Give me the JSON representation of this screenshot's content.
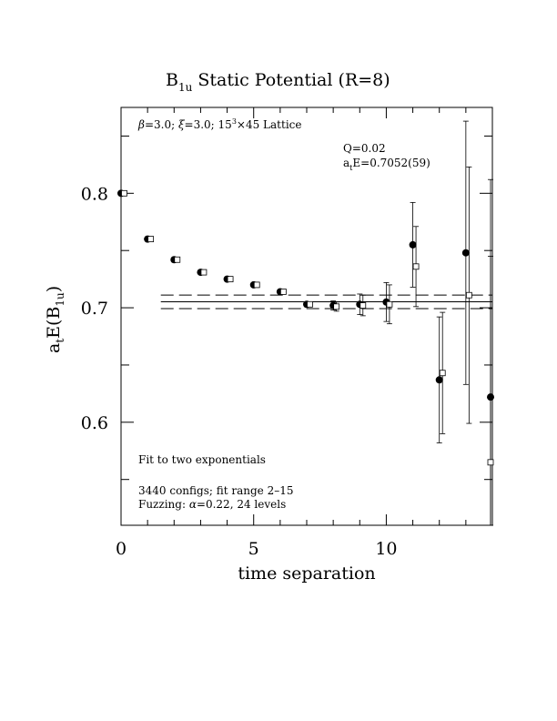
{
  "chart_data": {
    "type": "scatter",
    "title_main": "B",
    "title_sub": "1u",
    "title_rest": " Static Potential (R=8)",
    "xlabel": "time separation",
    "ylabel_parts": [
      "a",
      "t",
      "E(B",
      "1u",
      ")"
    ],
    "xlim": [
      0,
      14
    ],
    "ylim": [
      0.51,
      0.875
    ],
    "xticks": [
      0,
      5,
      10
    ],
    "yticks": [
      0.6,
      0.7,
      0.8
    ],
    "xtick_labels": [
      "0",
      "5",
      "10"
    ],
    "ytick_labels": [
      "0.6",
      "0.7",
      "0.8"
    ],
    "annotations": {
      "lattice_beta": "=3.0; ",
      "lattice_xi": "=3.0; 15",
      "lattice_sup": "3",
      "lattice_rest": "×45 Lattice",
      "q": "Q=0.02",
      "fit_a": "a",
      "fit_t": "t",
      "fit_rest": "E=0.7052(59)",
      "fit_type": "Fit to two exponentials",
      "configs": "3440 configs; fit range 2–15",
      "fuzzing_pre": "Fuzzing: ",
      "fuzzing_post": "=0.22, 24 levels"
    },
    "fit": {
      "value": 0.7052,
      "err": 0.0059,
      "x_range": [
        1.5,
        14
      ]
    },
    "series": [
      {
        "marker": "filled-circle",
        "points": [
          {
            "x": 0,
            "y": 0.8,
            "err": 0.001
          },
          {
            "x": 1,
            "y": 0.76,
            "err": 0.001
          },
          {
            "x": 2,
            "y": 0.742,
            "err": 0.001
          },
          {
            "x": 3,
            "y": 0.731,
            "err": 0.001
          },
          {
            "x": 4,
            "y": 0.725,
            "err": 0.001
          },
          {
            "x": 5,
            "y": 0.72,
            "err": 0.001
          },
          {
            "x": 6,
            "y": 0.714,
            "err": 0.001
          },
          {
            "x": 7,
            "y": 0.703,
            "err": 0.002
          },
          {
            "x": 8,
            "y": 0.702,
            "err": 0.004
          },
          {
            "x": 9,
            "y": 0.703,
            "err": 0.009
          },
          {
            "x": 10,
            "y": 0.705,
            "err": 0.017
          },
          {
            "x": 11,
            "y": 0.755,
            "err": 0.037
          },
          {
            "x": 12,
            "y": 0.637,
            "err": 0.055
          },
          {
            "x": 13,
            "y": 0.748,
            "err": 0.115
          },
          {
            "x": 14,
            "y": 0.622,
            "err": 0.19
          }
        ]
      },
      {
        "marker": "open-square",
        "points": [
          {
            "x": 0.12,
            "y": 0.8,
            "err": 0.001
          },
          {
            "x": 1.12,
            "y": 0.76,
            "err": 0.001
          },
          {
            "x": 2.12,
            "y": 0.742,
            "err": 0.001
          },
          {
            "x": 3.12,
            "y": 0.731,
            "err": 0.001
          },
          {
            "x": 4.12,
            "y": 0.725,
            "err": 0.001
          },
          {
            "x": 5.12,
            "y": 0.72,
            "err": 0.001
          },
          {
            "x": 6.12,
            "y": 0.714,
            "err": 0.001
          },
          {
            "x": 7.12,
            "y": 0.703,
            "err": 0.002
          },
          {
            "x": 8.12,
            "y": 0.701,
            "err": 0.004
          },
          {
            "x": 9.12,
            "y": 0.702,
            "err": 0.009
          },
          {
            "x": 10.12,
            "y": 0.703,
            "err": 0.017
          },
          {
            "x": 11.12,
            "y": 0.736,
            "err": 0.035
          },
          {
            "x": 12.12,
            "y": 0.643,
            "err": 0.053
          },
          {
            "x": 13.12,
            "y": 0.711,
            "err": 0.112
          },
          {
            "x": 14.12,
            "y": 0.565,
            "err": 0.18
          }
        ]
      }
    ]
  }
}
